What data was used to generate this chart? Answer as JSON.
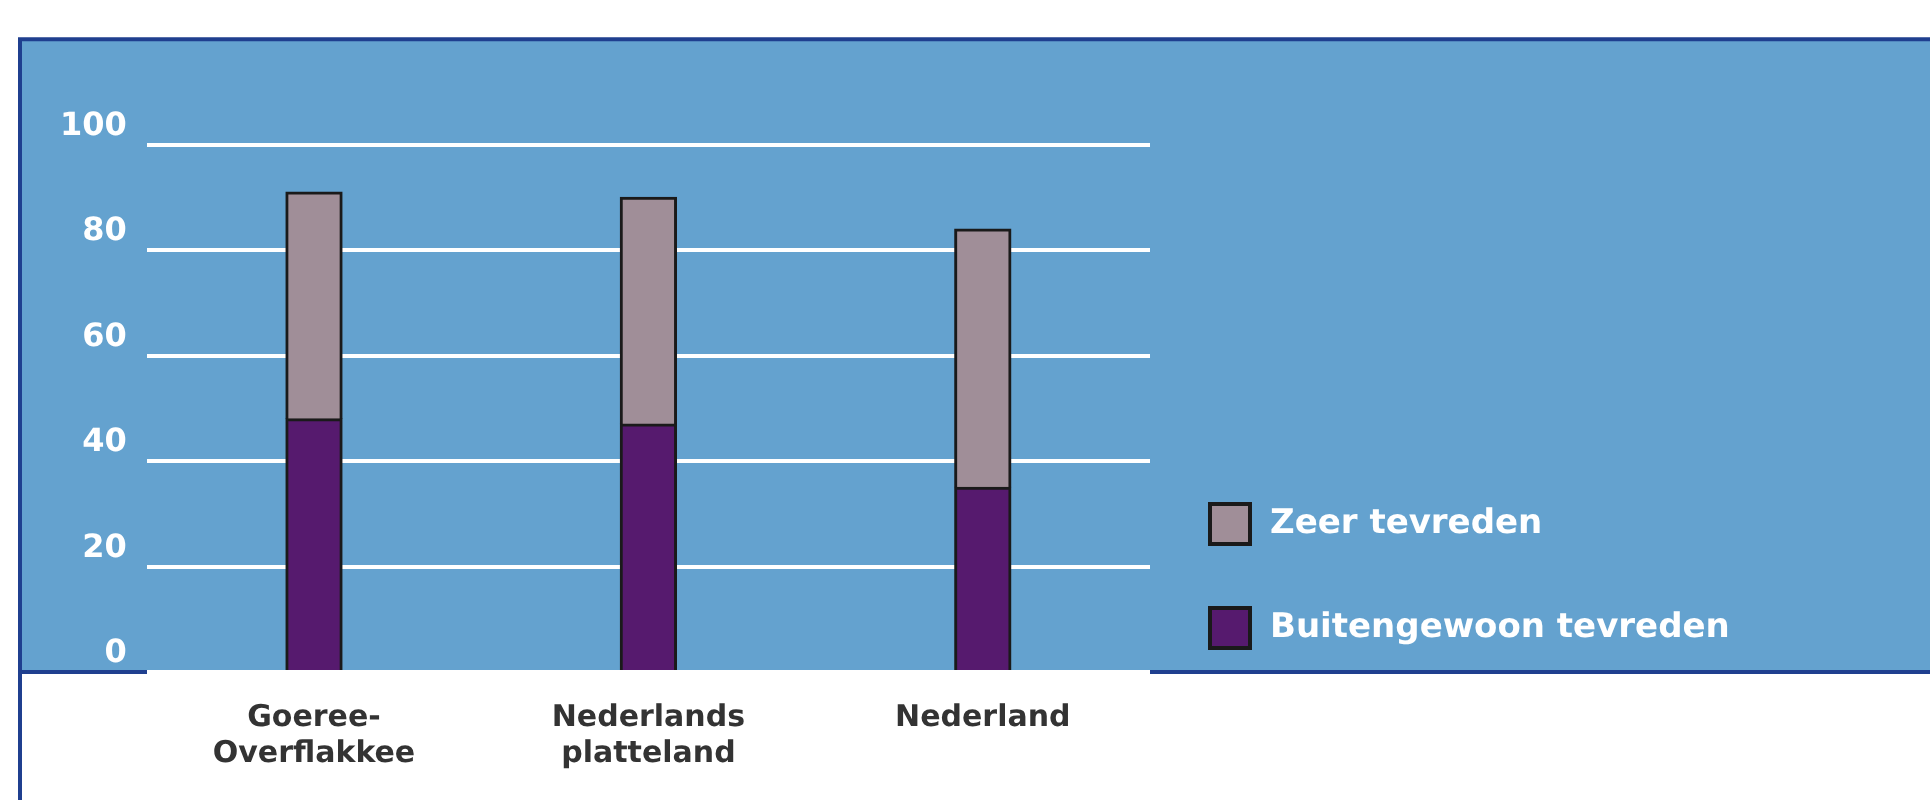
{
  "chart_data": {
    "type": "bar",
    "stacked": true,
    "categories": [
      "Goeree-Overflakkee",
      "Nederlands platteland",
      "Nederland"
    ],
    "series": [
      {
        "name": "Buitengewoon tevreden",
        "color": "#561a6e",
        "values": [
          48,
          47,
          35
        ]
      },
      {
        "name": "Zeer tevreden",
        "color": "#a08e98",
        "values": [
          43,
          43,
          49
        ]
      }
    ],
    "ylim": [
      0,
      120
    ],
    "yticks": [
      0,
      20,
      40,
      60,
      80,
      100
    ],
    "grid": "y",
    "legend": "bottom right"
  }
}
